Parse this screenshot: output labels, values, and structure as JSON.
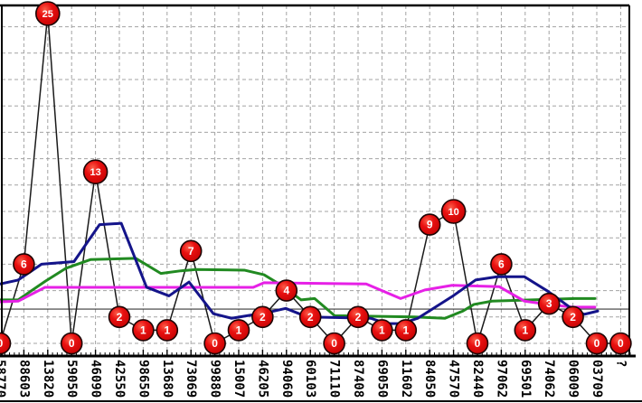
{
  "chart_data": {
    "type": "line",
    "title": "",
    "legend": "none",
    "grid": true,
    "background": "#ffffff",
    "colors": {
      "grid": "#a3a3a3",
      "axis": "#000000",
      "border": "#000000",
      "reference_line": "#3a3a3a",
      "marker_fill": "#e00808",
      "marker_ring": "#1c0404",
      "marker_text": "#ffffff"
    },
    "x_axis": {
      "labels": [
        "58770",
        "88603",
        "13820",
        "59050",
        "46090",
        "42550",
        "98650",
        "13680",
        "73069",
        "99880",
        "15007",
        "46205",
        "94060",
        "60103",
        "71110",
        "87408",
        "69050",
        "11602",
        "84050",
        "47570",
        "82440",
        "97062",
        "69501",
        "74062",
        "06009",
        "03709",
        "?"
      ],
      "first_label_clipped": true,
      "rotation_deg": 90
    },
    "y_axis": {
      "labels_visible": false,
      "ylim": [
        0,
        25.6
      ],
      "gridline_step": 2
    },
    "series": [
      {
        "name": "draw-values",
        "type": "line-with-labeled-markers",
        "color": "#1a1a1a",
        "width": 1.5,
        "values": [
          0,
          6,
          25,
          0,
          13,
          2,
          1,
          1,
          7,
          0,
          1,
          2,
          4,
          2,
          0,
          2,
          1,
          1,
          9,
          10,
          0,
          6,
          1,
          3,
          2,
          0,
          0
        ]
      },
      {
        "name": "trend-green",
        "type": "line",
        "color": "#218a21",
        "width": 3,
        "points": [
          [
            0,
            3.3
          ],
          [
            0.76,
            3.3
          ],
          [
            1.89,
            4.7
          ],
          [
            2.77,
            5.7
          ],
          [
            3.79,
            6.35
          ],
          [
            5.68,
            6.45
          ],
          [
            6.74,
            5.3
          ],
          [
            7.58,
            5.5
          ],
          [
            8.22,
            5.6
          ],
          [
            10.23,
            5.55
          ],
          [
            11.06,
            5.2
          ],
          [
            11.74,
            4.45
          ],
          [
            12.61,
            3.3
          ],
          [
            13.18,
            3.4
          ],
          [
            14.02,
            2.1
          ],
          [
            17.35,
            2.0
          ],
          [
            18.64,
            1.9
          ],
          [
            19.39,
            2.45
          ],
          [
            19.85,
            2.95
          ],
          [
            20.61,
            3.2
          ],
          [
            24.09,
            3.4
          ],
          [
            24.92,
            3.4
          ]
        ]
      },
      {
        "name": "trend-navy",
        "type": "line",
        "color": "#14148a",
        "width": 3,
        "points": [
          [
            0,
            4.5
          ],
          [
            0.76,
            4.8
          ],
          [
            1.74,
            6.0
          ],
          [
            3.1,
            6.2
          ],
          [
            4.17,
            9.0
          ],
          [
            5.08,
            9.1
          ],
          [
            6.14,
            4.25
          ],
          [
            7.08,
            3.6
          ],
          [
            7.92,
            4.65
          ],
          [
            8.94,
            2.25
          ],
          [
            9.7,
            1.9
          ],
          [
            11.36,
            2.4
          ],
          [
            11.97,
            2.65
          ],
          [
            12.88,
            2.0
          ],
          [
            15.53,
            1.9
          ],
          [
            16.21,
            1.5
          ],
          [
            16.82,
            1.5
          ],
          [
            17.5,
            1.9
          ],
          [
            18.94,
            3.55
          ],
          [
            19.92,
            4.8
          ],
          [
            20.83,
            5.05
          ],
          [
            21.97,
            5.05
          ],
          [
            22.95,
            3.95
          ],
          [
            23.86,
            2.75
          ],
          [
            24.47,
            2.2
          ],
          [
            25.04,
            2.45
          ]
        ]
      },
      {
        "name": "trend-magenta",
        "type": "line",
        "color": "#e620e6",
        "width": 3,
        "points": [
          [
            0,
            3.15
          ],
          [
            0.76,
            3.2
          ],
          [
            1.89,
            4.25
          ],
          [
            10.61,
            4.25
          ],
          [
            11.06,
            4.6
          ],
          [
            15.34,
            4.5
          ],
          [
            16.78,
            3.4
          ],
          [
            17.8,
            4.05
          ],
          [
            18.94,
            4.4
          ],
          [
            20.91,
            4.3
          ],
          [
            21.97,
            3.2
          ],
          [
            22.95,
            2.95
          ],
          [
            23.98,
            2.75
          ],
          [
            24.92,
            2.75
          ]
        ]
      }
    ],
    "reference_line": {
      "value": 2.6,
      "color": "#3a3a3a"
    }
  }
}
